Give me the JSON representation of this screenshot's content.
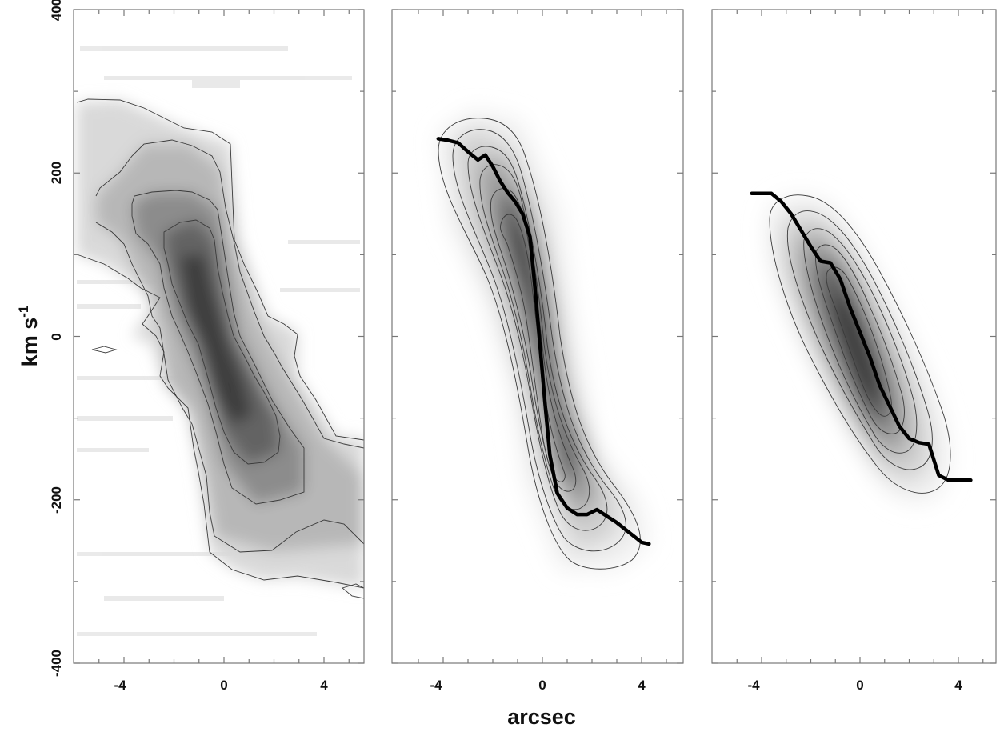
{
  "chart_data": {
    "type": "heatmap",
    "layout": "three panels side by side, shared y axis",
    "xlabel": "arcsec",
    "ylabel": "km s",
    "ylabel_exponent": "-1",
    "x_ticks": [
      -4,
      0,
      4
    ],
    "y_ticks": [
      400,
      200,
      0,
      -200,
      -400
    ],
    "xlim": [
      -5.8,
      5.5
    ],
    "ylim": [
      -400,
      400
    ],
    "colormap": "grayscale, darker = higher intensity",
    "panels": [
      {
        "id": "observed",
        "description": "observed position-velocity diagram with contours",
        "rotation_curve": null,
        "ridge": {
          "x": [
            -5.2,
            -4,
            -3,
            -2,
            -1.5,
            -1,
            -0.5,
            0,
            0.5,
            1,
            2,
            3,
            4,
            5
          ],
          "y": [
            260,
            230,
            180,
            150,
            120,
            80,
            30,
            -20,
            -70,
            -110,
            -160,
            -200,
            -230,
            -240
          ]
        }
      },
      {
        "id": "model-1",
        "description": "model position-velocity diagram with contours",
        "rotation_curve": {
          "x": [
            -4.2,
            -3.8,
            -3.4,
            -3.0,
            -2.6,
            -2.3,
            -2.0,
            -1.7,
            -1.4,
            -1.1,
            -0.8,
            -0.5,
            -0.3,
            -0.1,
            0.1,
            0.3,
            0.6,
            1.0,
            1.4,
            1.8,
            2.2,
            2.6,
            3.0,
            3.5,
            4.0,
            4.3
          ],
          "y": [
            242,
            240,
            237,
            226,
            216,
            222,
            208,
            190,
            176,
            165,
            150,
            122,
            60,
            -10,
            -80,
            -145,
            -192,
            -210,
            -218,
            -218,
            -212,
            -220,
            -228,
            -240,
            -252,
            -254
          ]
        }
      },
      {
        "id": "model-2",
        "description": "model position-velocity diagram with contours",
        "rotation_curve": {
          "x": [
            -4.4,
            -4.0,
            -3.6,
            -3.2,
            -2.8,
            -2.4,
            -2.0,
            -1.6,
            -1.2,
            -0.8,
            -0.4,
            0.0,
            0.4,
            0.8,
            1.2,
            1.6,
            2.0,
            2.4,
            2.8,
            3.2,
            3.6,
            4.0,
            4.5
          ],
          "y": [
            175,
            175,
            175,
            165,
            150,
            130,
            110,
            92,
            90,
            70,
            35,
            5,
            -25,
            -60,
            -85,
            -110,
            -125,
            -130,
            -132,
            -170,
            -176,
            -176,
            -176
          ]
        }
      }
    ]
  }
}
